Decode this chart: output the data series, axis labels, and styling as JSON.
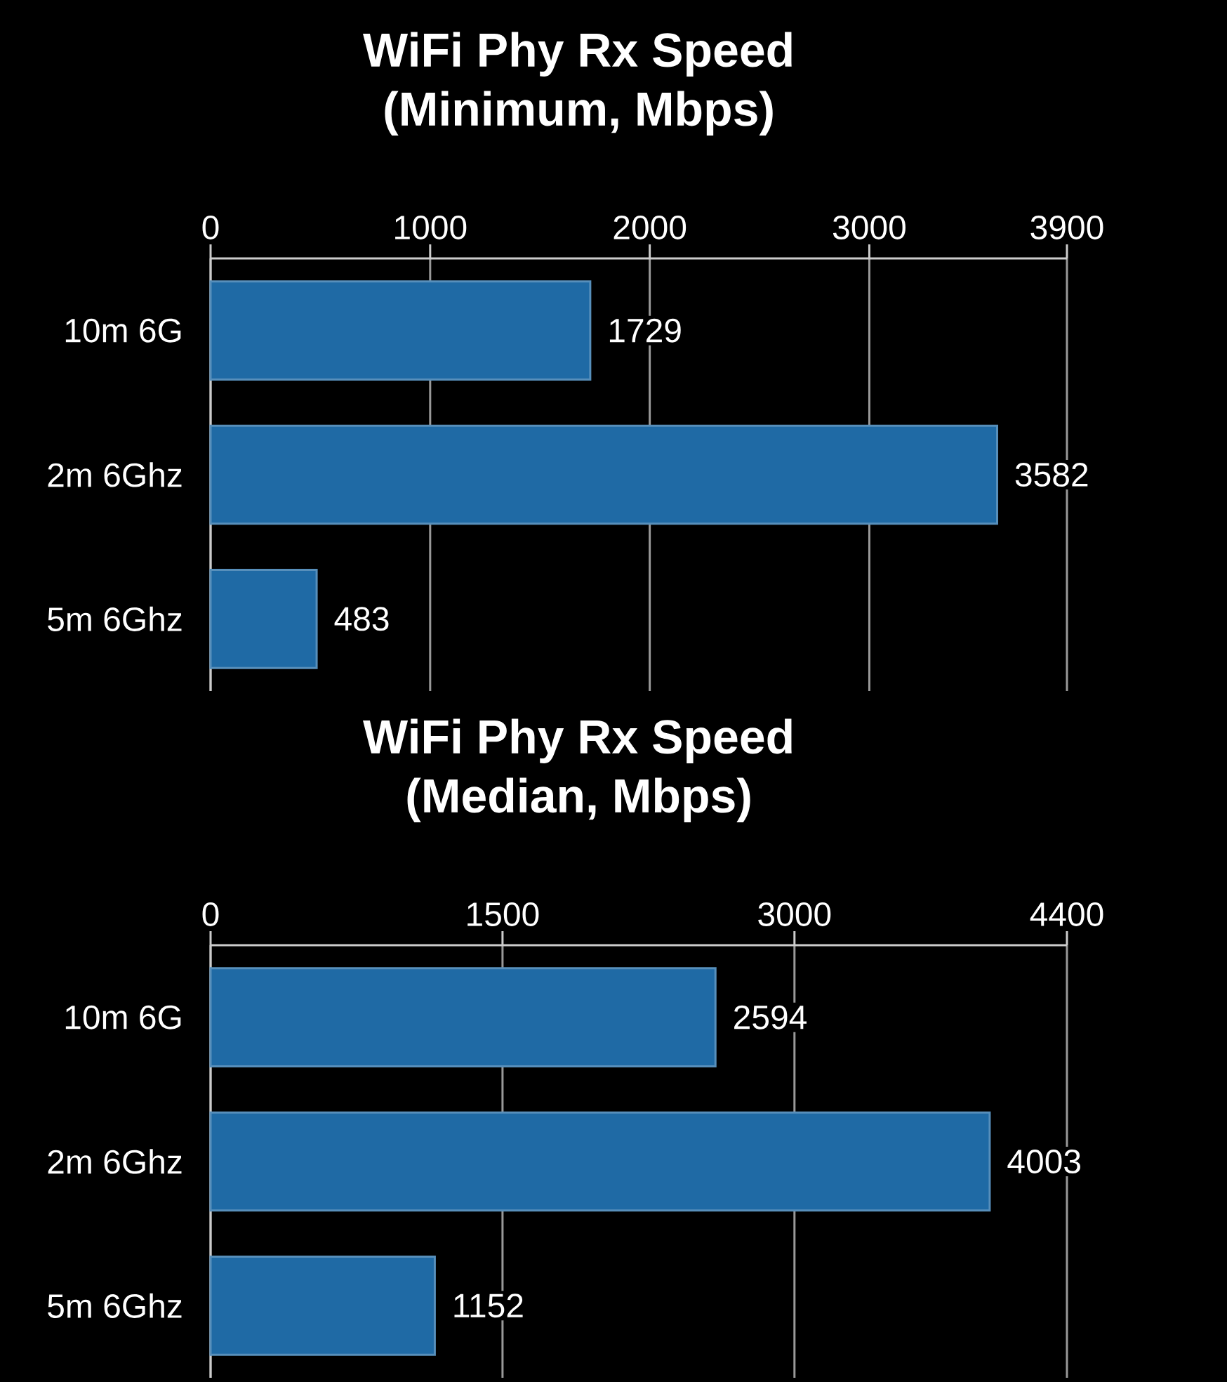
{
  "chart_data": [
    {
      "type": "bar",
      "orientation": "horizontal",
      "title": "WiFi Phy Rx Speed",
      "subtitle": "(Minimum, Mbps)",
      "categories": [
        "10m 6G",
        "2m 6Ghz",
        "5m 6Ghz"
      ],
      "values": [
        1729,
        3582,
        483
      ],
      "color": "#1f6aa5",
      "xlim": [
        0,
        3900
      ],
      "xticks": [
        0,
        1000,
        2000,
        3000,
        3900
      ],
      "grid": "x",
      "data_labels": true
    },
    {
      "type": "bar",
      "orientation": "horizontal",
      "title": "WiFi Phy Rx Speed",
      "subtitle": "(Median, Mbps)",
      "categories": [
        "10m 6G",
        "2m 6Ghz",
        "5m 6Ghz"
      ],
      "values": [
        2594,
        4003,
        1152
      ],
      "color": "#1f6aa5",
      "xlim": [
        0,
        4400
      ],
      "xticks": [
        0,
        1500,
        3000,
        4400
      ],
      "grid": "x",
      "data_labels": true
    }
  ]
}
